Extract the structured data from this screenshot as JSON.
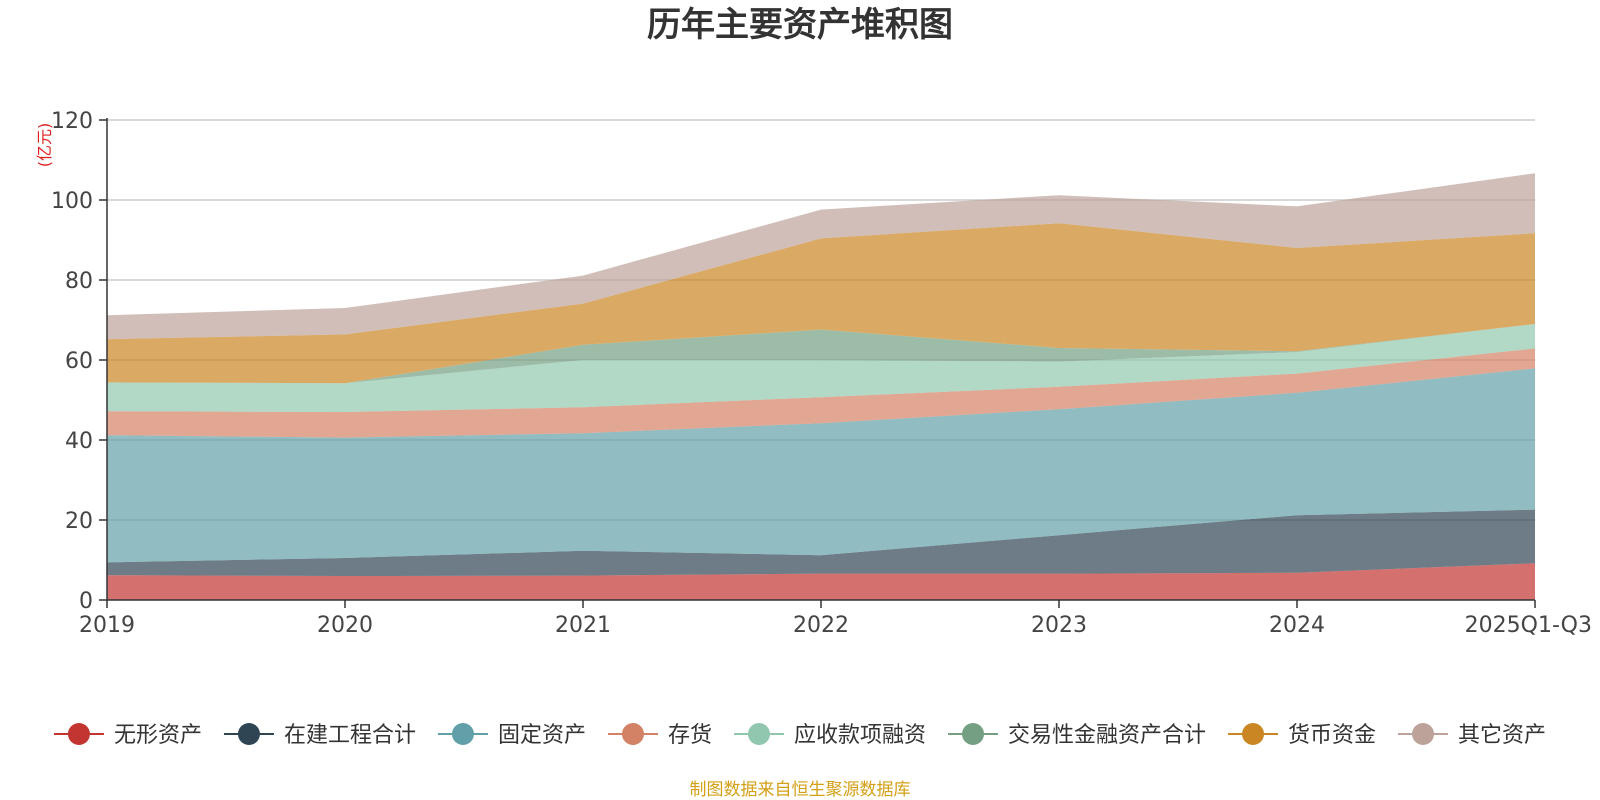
{
  "chart_data": {
    "type": "area",
    "stacked": true,
    "title": "历年主要资产堆积图",
    "unit_label": "(亿元)",
    "xlabel": "",
    "ylabel": "(亿元)",
    "ylim": [
      0,
      120
    ],
    "y_ticks": [
      0,
      20,
      40,
      60,
      80,
      100,
      120
    ],
    "grid": true,
    "legend_position": "bottom",
    "categories": [
      "2019",
      "2020",
      "2021",
      "2022",
      "2023",
      "2024",
      "2025Q1-Q3"
    ],
    "series": [
      {
        "name": "无形资产",
        "color": "#c23531",
        "values": [
          6.2,
          6.0,
          6.1,
          6.6,
          6.6,
          6.8,
          9.2
        ]
      },
      {
        "name": "在建工程合计",
        "color": "#2f4554",
        "values": [
          3.2,
          4.5,
          6.2,
          4.6,
          9.6,
          14.4,
          13.4
        ]
      },
      {
        "name": "固定资产",
        "color": "#61a0a8",
        "values": [
          31.8,
          30.1,
          29.4,
          33.0,
          31.5,
          30.6,
          35.3
        ]
      },
      {
        "name": "存货",
        "color": "#d48265",
        "values": [
          6.0,
          6.4,
          6.5,
          6.5,
          5.6,
          4.8,
          5.0
        ]
      },
      {
        "name": "应收款项融资",
        "color": "#91c7ae",
        "values": [
          7.2,
          7.2,
          11.8,
          9.3,
          6.3,
          5.4,
          6.1
        ]
      },
      {
        "name": "交易性金融资产合计",
        "color": "#749f83",
        "values": [
          0,
          0,
          3.8,
          7.6,
          3.4,
          0.2,
          0
        ]
      },
      {
        "name": "货币资金",
        "color": "#ca8622",
        "values": [
          10.8,
          12.2,
          10.3,
          22.8,
          31.2,
          25.8,
          22.7
        ]
      },
      {
        "name": "其它资产",
        "color": "#bda29a",
        "values": [
          6.0,
          6.6,
          7.0,
          7.2,
          7.0,
          10.4,
          15.0
        ]
      }
    ],
    "source_note": "制图数据来自恒生聚源数据库"
  }
}
